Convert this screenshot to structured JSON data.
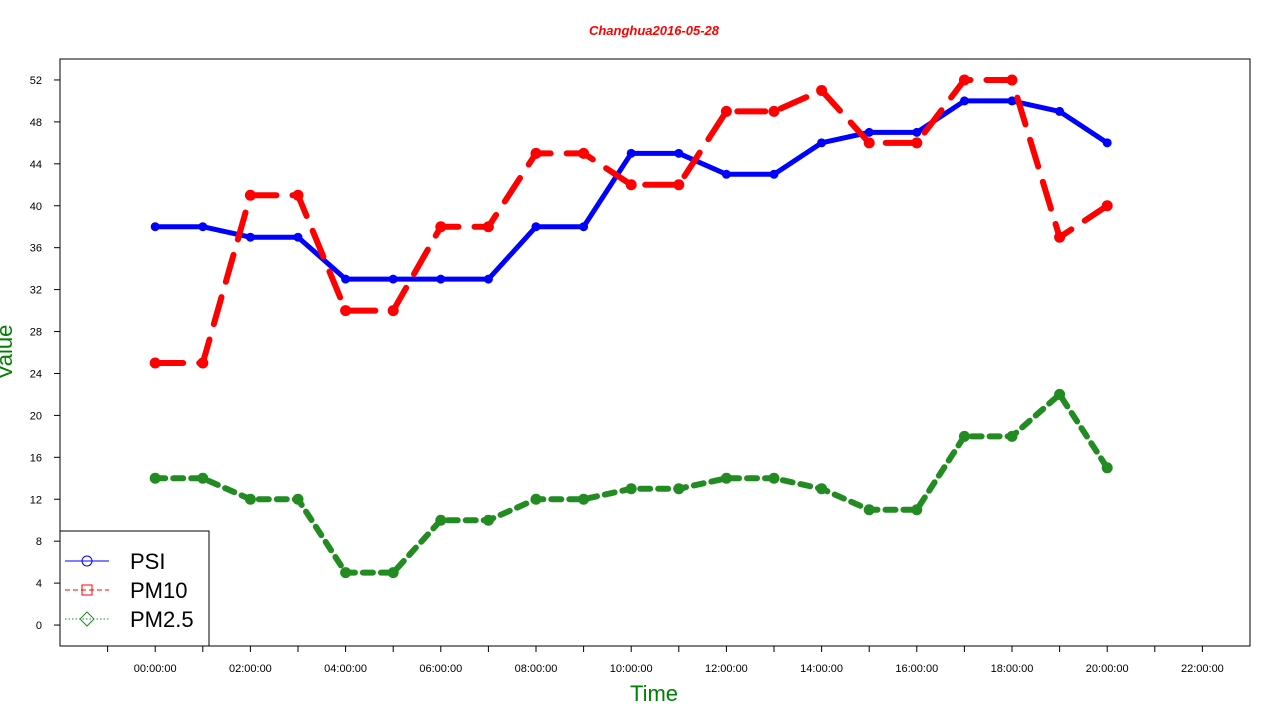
{
  "chart_data": {
    "type": "line",
    "title": "Changhua2016-05-28",
    "xlabel": "Time",
    "ylabel": "Value",
    "x_ticks": [
      "00:00:00",
      "02:00:00",
      "04:00:00",
      "06:00:00",
      "08:00:00",
      "10:00:00",
      "12:00:00",
      "14:00:00",
      "16:00:00",
      "18:00:00",
      "20:00:00",
      "22:00:00"
    ],
    "x_hours": [
      0,
      1,
      2,
      3,
      4,
      5,
      6,
      7,
      8,
      9,
      10,
      11,
      12,
      13,
      14,
      15,
      16,
      17,
      18,
      19,
      20
    ],
    "xlim": [
      -2,
      23
    ],
    "ylim": [
      -2,
      54
    ],
    "y_ticks": [
      0,
      4,
      8,
      12,
      16,
      20,
      24,
      28,
      32,
      36,
      40,
      44,
      48,
      52
    ],
    "legend_position": "bottom-left",
    "grid": false,
    "colors": {
      "title": "#ff0000",
      "axis_label": "#008000"
    },
    "series": [
      {
        "name": "PSI",
        "color": "#0000ff",
        "style": "solid",
        "values": [
          38,
          38,
          37,
          37,
          33,
          33,
          33,
          33,
          38,
          38,
          45,
          45,
          43,
          43,
          46,
          47,
          47,
          50,
          50,
          49,
          46
        ]
      },
      {
        "name": "PM10",
        "color": "#ff0000",
        "style": "dashed",
        "values": [
          25,
          25,
          41,
          41,
          30,
          30,
          38,
          38,
          45,
          45,
          42,
          42,
          49,
          49,
          51,
          46,
          46,
          52,
          52,
          37,
          40
        ]
      },
      {
        "name": "PM2.5",
        "color": "#228b22",
        "style": "dotted",
        "values": [
          14,
          14,
          12,
          12,
          5,
          5,
          10,
          10,
          12,
          12,
          13,
          13,
          14,
          14,
          13,
          11,
          11,
          18,
          18,
          22,
          15
        ]
      }
    ]
  }
}
